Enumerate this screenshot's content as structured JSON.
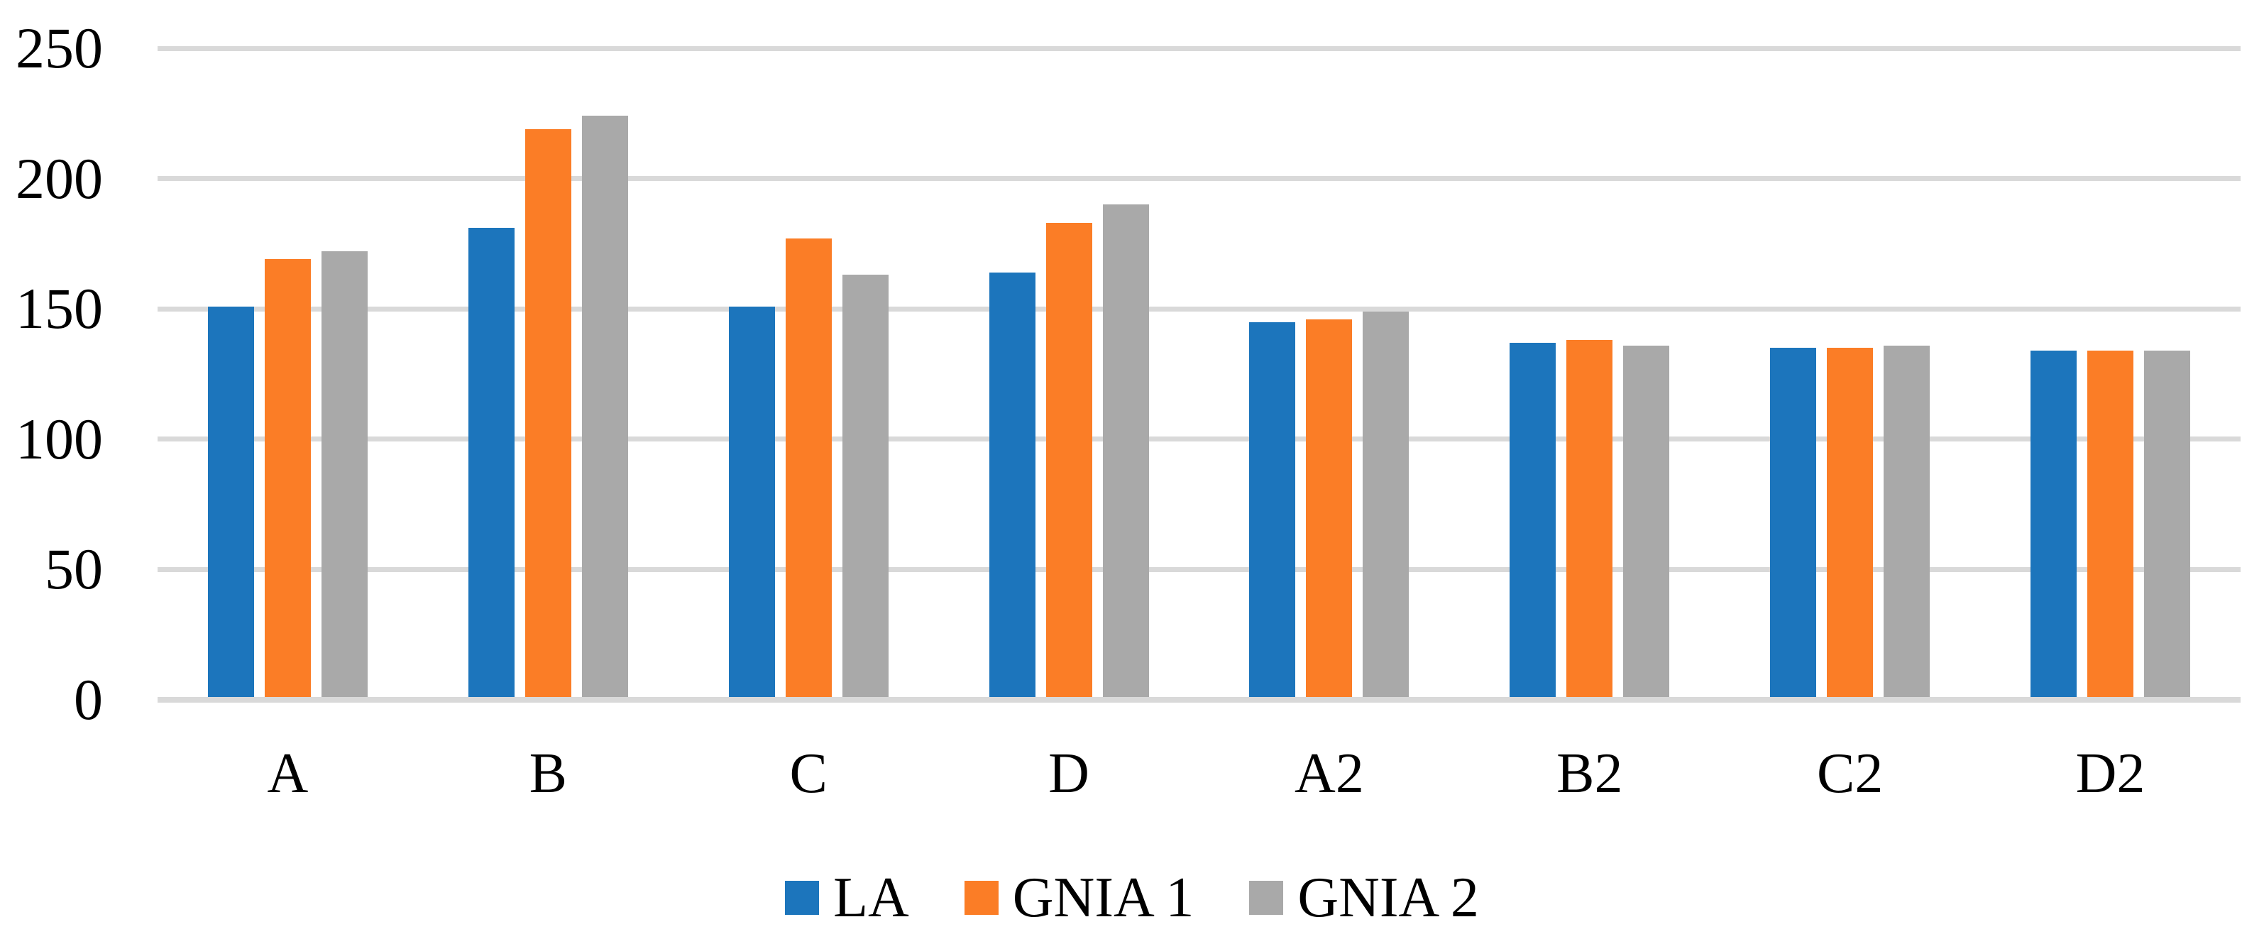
{
  "chart_data": {
    "type": "bar",
    "title": "",
    "xlabel": "",
    "ylabel": "",
    "categories": [
      "A",
      "B",
      "C",
      "D",
      "A2",
      "B2",
      "C2",
      "D2"
    ],
    "series": [
      {
        "name": "LA",
        "color": "#1C75BC",
        "values": [
          151,
          181,
          151,
          164,
          145,
          137,
          135,
          134
        ]
      },
      {
        "name": "GNIA 1",
        "color": "#FB7D26",
        "values": [
          169,
          219,
          177,
          183,
          146,
          138,
          135,
          134
        ]
      },
      {
        "name": "GNIA 2",
        "color": "#A9A9A9",
        "values": [
          172,
          224,
          163,
          190,
          149,
          136,
          136,
          134
        ]
      }
    ],
    "ylim": [
      0,
      250
    ],
    "yticks": [
      0,
      50,
      100,
      150,
      200,
      250
    ],
    "grid": true,
    "legend_position": "bottom"
  },
  "style": {
    "gridline_color": "#D9D9D9",
    "axis_line_color": "#D9D9D9",
    "text_color": "#000000",
    "background": "#FFFFFF"
  }
}
